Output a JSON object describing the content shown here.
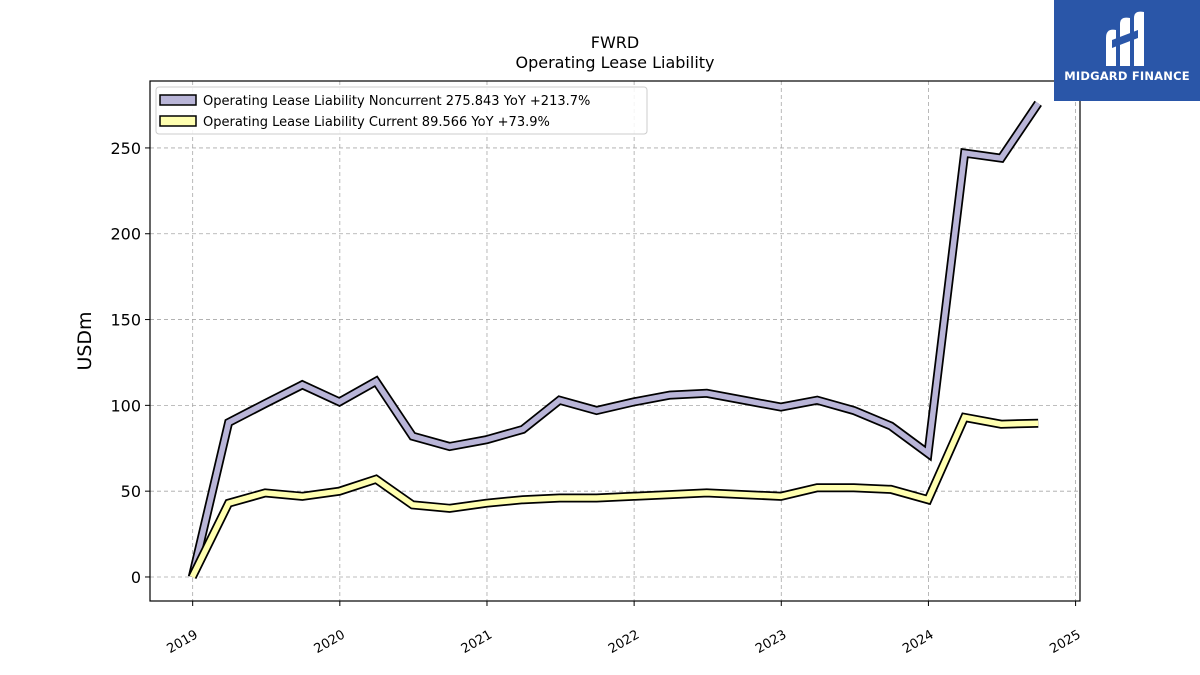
{
  "chart_data": {
    "type": "line",
    "title": "FWRD",
    "subtitle": "Operating Lease Liability",
    "ylabel": "USDm",
    "xlabel": "",
    "ylim": [
      -14,
      289
    ],
    "xlim": [
      2018.71,
      2025.03
    ],
    "yticks": [
      0,
      50,
      100,
      150,
      200,
      250
    ],
    "xticks": [
      "2019",
      "2020",
      "2021",
      "2022",
      "2023",
      "2024",
      "2025"
    ],
    "grid": true,
    "legend_position": "top-left",
    "series": [
      {
        "name": "Operating Lease Liability Noncurrent",
        "legend_label": "Operating Lease Liability Noncurrent  275.843 YoY +213.7%",
        "color": "#b9b5d8",
        "x": [
          "2018-12-31",
          "2019-03-31",
          "2019-06-30",
          "2019-09-30",
          "2019-12-31",
          "2020-03-31",
          "2020-06-30",
          "2020-09-30",
          "2020-12-31",
          "2021-03-31",
          "2021-06-30",
          "2021-09-30",
          "2021-12-31",
          "2022-03-31",
          "2022-06-30",
          "2022-09-30",
          "2022-12-31",
          "2023-03-31",
          "2023-06-30",
          "2023-09-30",
          "2023-12-31",
          "2024-03-31",
          "2024-06-30",
          "2024-09-30"
        ],
        "values": [
          0,
          90,
          101,
          112,
          102,
          114,
          82,
          76,
          80,
          86,
          103,
          97,
          102,
          106,
          107,
          103,
          99,
          103,
          97,
          88,
          72,
          247,
          244,
          276
        ]
      },
      {
        "name": "Operating Lease Liability Current",
        "legend_label": "Operating Lease Liability Current  89.566 YoY +73.9%",
        "color": "#ffffb0",
        "x": [
          "2018-12-31",
          "2019-03-31",
          "2019-06-30",
          "2019-09-30",
          "2019-12-31",
          "2020-03-31",
          "2020-06-30",
          "2020-09-30",
          "2020-12-31",
          "2021-03-31",
          "2021-06-30",
          "2021-09-30",
          "2021-12-31",
          "2022-03-31",
          "2022-06-30",
          "2022-09-30",
          "2022-12-31",
          "2023-03-31",
          "2023-06-30",
          "2023-09-30",
          "2023-12-31",
          "2024-03-31",
          "2024-06-30",
          "2024-09-30"
        ],
        "values": [
          0,
          43,
          49,
          47,
          50,
          57,
          42,
          40,
          43,
          45,
          46,
          46,
          47,
          48,
          49,
          48,
          47,
          52,
          52,
          51,
          45,
          93,
          89,
          89.6
        ]
      }
    ]
  },
  "logo": {
    "text": "MIDGARD FINANCE"
  }
}
